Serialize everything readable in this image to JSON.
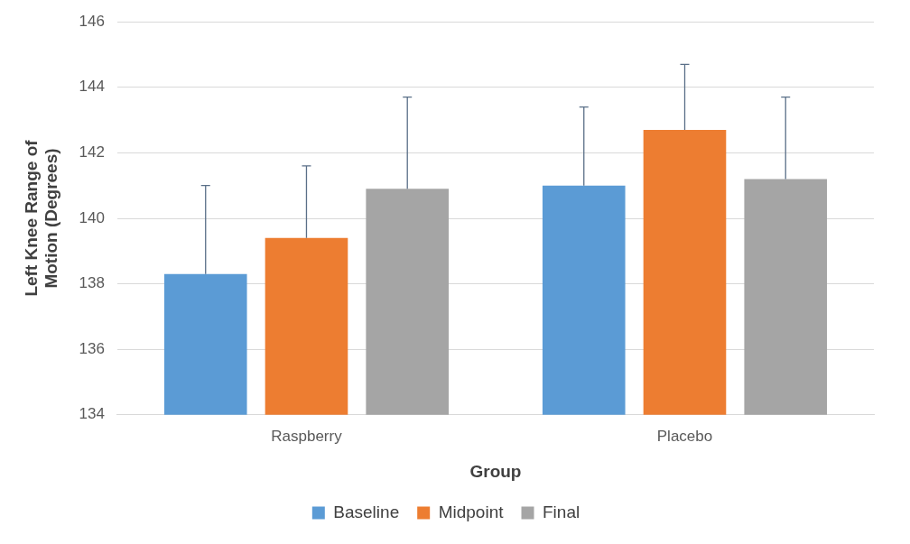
{
  "chart_data": {
    "type": "bar",
    "xlabel": "Group",
    "ylabel": "Left Knee Range of Motion (Degrees)",
    "categories": [
      "Raspberry",
      "Placebo"
    ],
    "series": [
      {
        "name": "Baseline",
        "color": "#5b9bd5",
        "values": [
          138.3,
          141.0
        ],
        "errors": [
          [
            138.3,
            141.0
          ],
          [
            141.0,
            143.4
          ]
        ]
      },
      {
        "name": "Midpoint",
        "color": "#ed7d31",
        "values": [
          139.4,
          142.7
        ],
        "errors": [
          [
            139.4,
            141.6
          ],
          [
            142.7,
            144.7
          ]
        ]
      },
      {
        "name": "Final",
        "color": "#a5a5a5",
        "values": [
          140.9,
          141.2
        ],
        "errors": [
          [
            140.9,
            143.7
          ],
          [
            141.2,
            143.7
          ]
        ]
      }
    ],
    "ylim": [
      134,
      146
    ],
    "yticks": [
      134,
      136,
      138,
      140,
      142,
      144,
      146
    ],
    "grid": "y",
    "legend": "bottom"
  }
}
